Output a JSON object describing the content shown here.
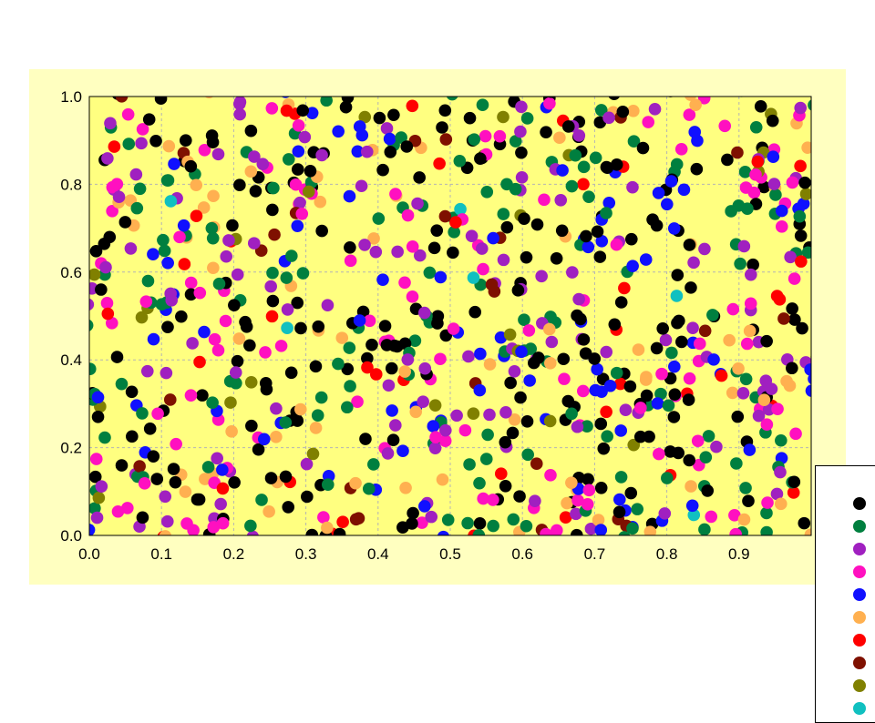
{
  "chart_data": {
    "type": "scatter",
    "title": "",
    "xlabel": "",
    "ylabel": "",
    "xlim": [
      0,
      1
    ],
    "ylim": [
      0,
      1
    ],
    "x_ticks": [
      "0.0",
      "0.1",
      "0.2",
      "0.3",
      "0.4",
      "0.5",
      "0.6",
      "0.7",
      "0.8",
      "0.9"
    ],
    "y_ticks": [
      "0.0",
      "0.2",
      "0.4",
      "0.6",
      "0.8",
      "1.0"
    ],
    "grid": true,
    "legend_position": "bottom-right",
    "plot_background": "#ffff80",
    "panel_background": "#ffffc0",
    "series": [
      {
        "color": "#000000",
        "count": 240
      },
      {
        "color": "#007f3f",
        "count": 160
      },
      {
        "color": "#a020c0",
        "count": 130
      },
      {
        "color": "#ff10c0",
        "count": 120
      },
      {
        "color": "#1010ff",
        "count": 95
      },
      {
        "color": "#ffb050",
        "count": 75
      },
      {
        "color": "#ff0000",
        "count": 40
      },
      {
        "color": "#7f1000",
        "count": 25
      },
      {
        "color": "#808000",
        "count": 25
      },
      {
        "color": "#10c0c0",
        "count": 6
      }
    ]
  }
}
